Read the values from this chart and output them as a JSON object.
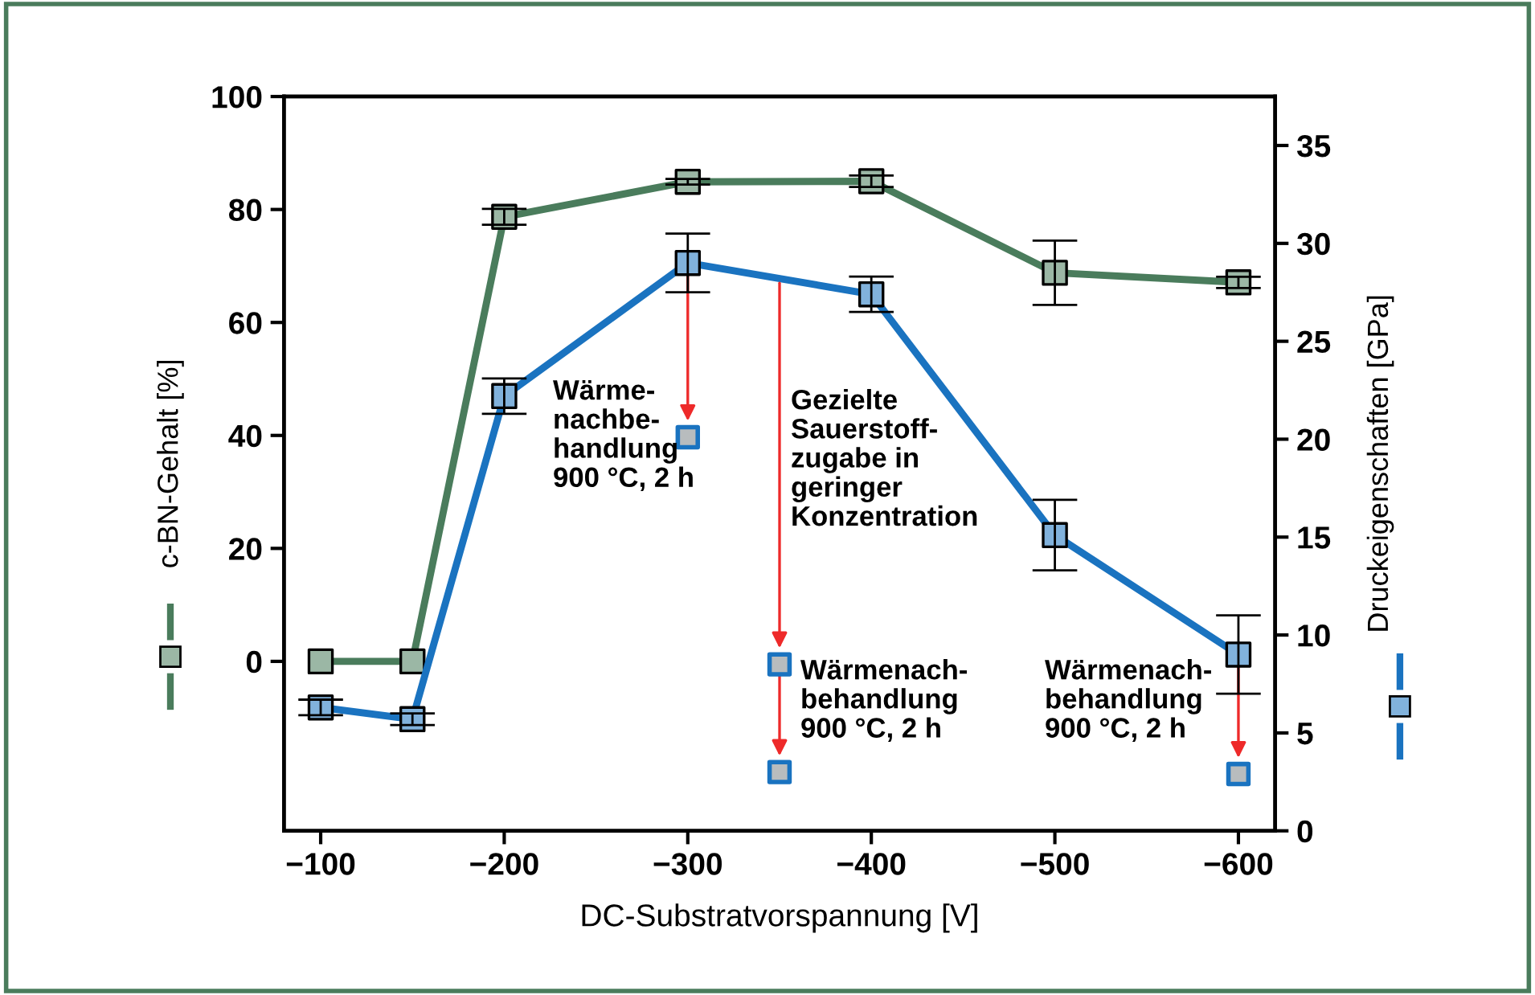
{
  "chart_data": {
    "type": "line",
    "xlabel": "DC-Substratvorspannung [V]",
    "ylabel": "c-BN-Gehalt [%]",
    "y2label": "Druckeigenschaften [GPa]",
    "x": [
      -100,
      -150,
      -200,
      -300,
      -400,
      -500,
      -600
    ],
    "xlim": [
      -80,
      -620
    ],
    "xticks": [
      {
        "value": -100,
        "label": "−100"
      },
      {
        "value": -200,
        "label": "−200"
      },
      {
        "value": -300,
        "label": "−300"
      },
      {
        "value": -400,
        "label": "−400"
      },
      {
        "value": -500,
        "label": "−500"
      },
      {
        "value": -600,
        "label": "−600"
      }
    ],
    "ylim": [
      -30,
      100
    ],
    "yticks": [
      0,
      20,
      40,
      60,
      80,
      100
    ],
    "y2lim": [
      0,
      37.5
    ],
    "y2ticks": [
      0,
      5,
      10,
      15,
      20,
      25,
      30,
      35
    ],
    "marker": "square",
    "grid": false,
    "legend": false,
    "series": [
      {
        "color": "#4a7c5c",
        "values": [
          0,
          0,
          78.7,
          84.9,
          85,
          68.8,
          67.1
        ],
        "errors": [
          null,
          null,
          1.4,
          0.5,
          1,
          5.7,
          1
        ]
      },
      {
        "color": "#1a73c0",
        "axis": "y2",
        "values": [
          6.3,
          5.7,
          22.2,
          29.0,
          27.4,
          15.1,
          9.0
        ],
        "errors": [
          0.4,
          0.3,
          0.9,
          1.5,
          0.9,
          1.8,
          2.0
        ]
      },
      {
        "type": "scatter",
        "color": "#b8bcbe",
        "axis": "y2",
        "x": [
          -300,
          -350,
          -350,
          -600
        ],
        "values": [
          20.1,
          8.5,
          3.0,
          2.9
        ]
      }
    ],
    "annotations": [
      "Wärme-\nnachbe-\nhandlung\n900 °C, 2 h",
      "Gezielte\nSauerstoff-\nzugabe in\ngeringer\nKonzentration",
      "Wärmenach-\nbehandlung\n900 °C, 2 h",
      "Wärmenach-\nbehandlung\n900 °C, 2 h"
    ]
  }
}
